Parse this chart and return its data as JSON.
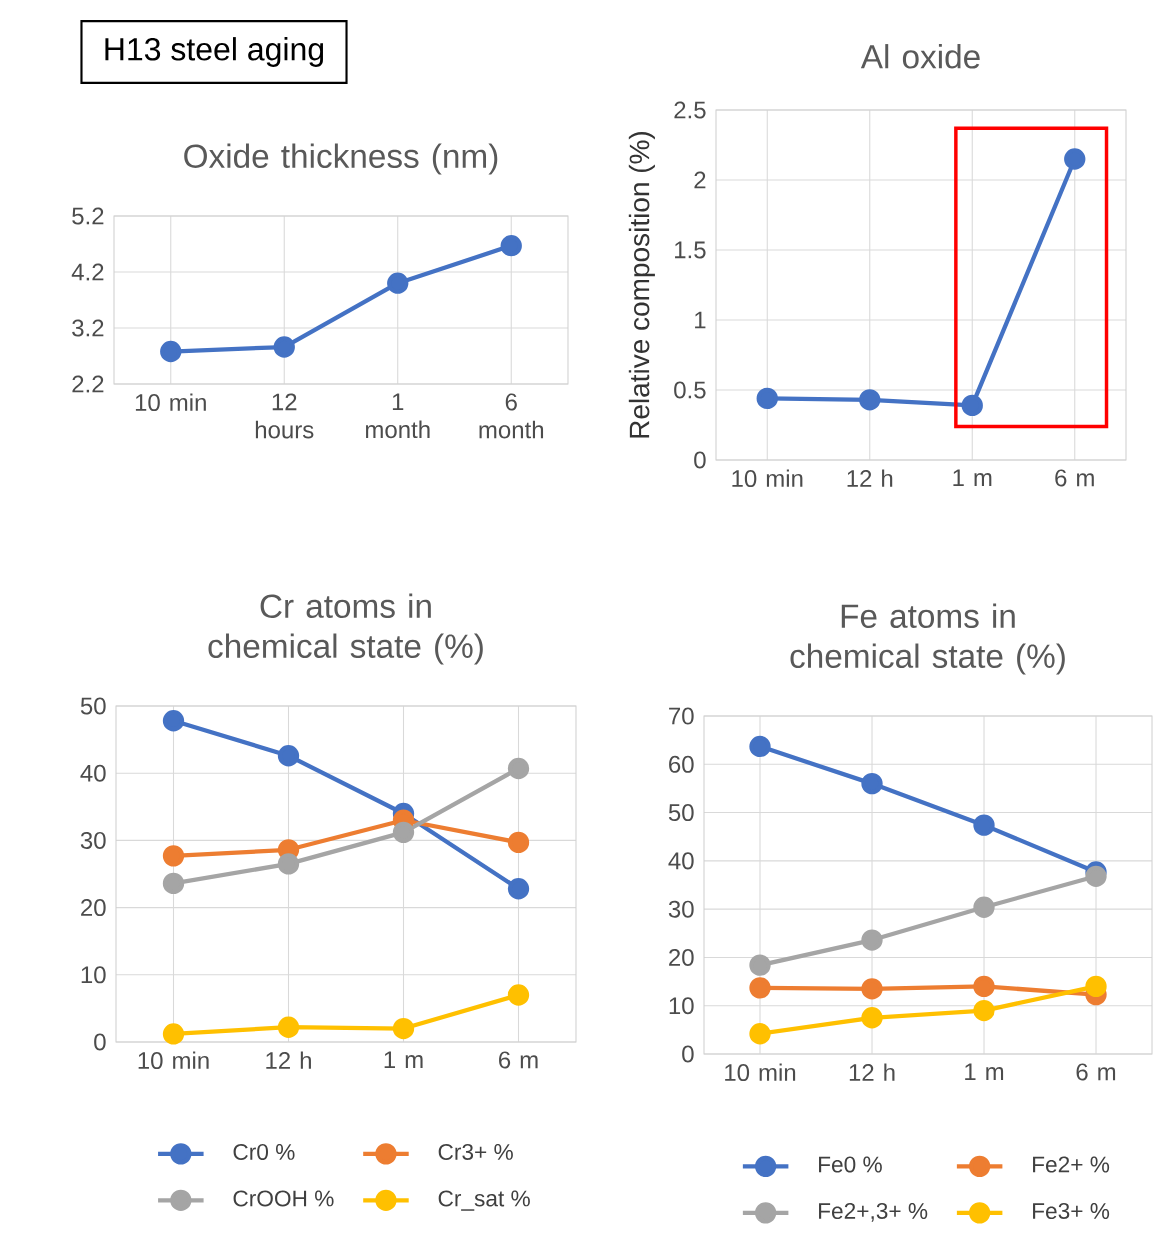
{
  "chart_data": [
    {
      "type": "other",
      "title": "H13 steel aging"
    },
    {
      "type": "line",
      "title": "Oxide thickness (nm)",
      "categories": [
        "10 min",
        "12 hours",
        "1 month",
        "6 month"
      ],
      "values": [
        2.78,
        2.86,
        4.0,
        4.67
      ],
      "color": "#4472c4",
      "ylim": [
        2.2,
        5.2
      ],
      "yticks": [
        2.2,
        3.2,
        4.2,
        5.2
      ],
      "grid": true,
      "marker": "circle",
      "line_style": "solid"
    },
    {
      "type": "line",
      "title": "Al oxide",
      "ylabel": "Relative composition (%)",
      "categories": [
        "10 min",
        "12 h",
        "1 m",
        "6 m"
      ],
      "values": [
        0.44,
        0.43,
        0.39,
        2.15
      ],
      "color": "#4472c4",
      "ylim": [
        0,
        2.5
      ],
      "yticks": [
        0,
        0.5,
        1,
        1.5,
        2,
        2.5
      ],
      "grid": true,
      "marker": "circle",
      "line_style": "solid"
    },
    {
      "type": "line",
      "title": "Cr atoms in chemical state (%)",
      "categories": [
        "10 min",
        "12 h",
        "1 m",
        "6 m"
      ],
      "ylim": [
        0,
        50
      ],
      "yticks": [
        0,
        10,
        20,
        30,
        40,
        50
      ],
      "grid": true,
      "marker": "circle",
      "line_style": "solid",
      "legend": "bottom",
      "series": [
        {
          "name": "Cr0 %",
          "color": "#4472c4",
          "values": [
            47.8,
            42.6,
            34.0,
            22.8
          ]
        },
        {
          "name": "Cr3+ %",
          "color": "#ed7d31",
          "values": [
            27.7,
            28.6,
            33.0,
            29.7
          ]
        },
        {
          "name": "CrOOH %",
          "color": "#a5a5a5",
          "values": [
            23.6,
            26.5,
            31.2,
            40.7
          ]
        },
        {
          "name": "Cr_sat %",
          "color": "#ffc000",
          "values": [
            1.2,
            2.2,
            2.0,
            7.0
          ]
        }
      ]
    },
    {
      "type": "line",
      "title": "Fe atoms in chemical state (%)",
      "categories": [
        "10 min",
        "12 h",
        "1 m",
        "6 m"
      ],
      "ylim": [
        0,
        70
      ],
      "yticks": [
        0,
        10,
        20,
        30,
        40,
        50,
        60,
        70
      ],
      "grid": true,
      "marker": "circle",
      "line_style": "solid",
      "legend": "bottom",
      "series": [
        {
          "name": "Fe0 %",
          "color": "#4472c4",
          "values": [
            63.7,
            56.0,
            47.4,
            37.7
          ]
        },
        {
          "name": "Fe2+ %",
          "color": "#ed7d31",
          "values": [
            13.7,
            13.5,
            14.0,
            12.3
          ]
        },
        {
          "name": "Fe2+,3+ %",
          "color": "#a5a5a5",
          "values": [
            18.4,
            23.6,
            30.4,
            36.8
          ]
        },
        {
          "name": "Fe3+ %",
          "color": "#ffc000",
          "values": [
            4.2,
            7.5,
            9.0,
            14.0
          ]
        }
      ]
    }
  ]
}
